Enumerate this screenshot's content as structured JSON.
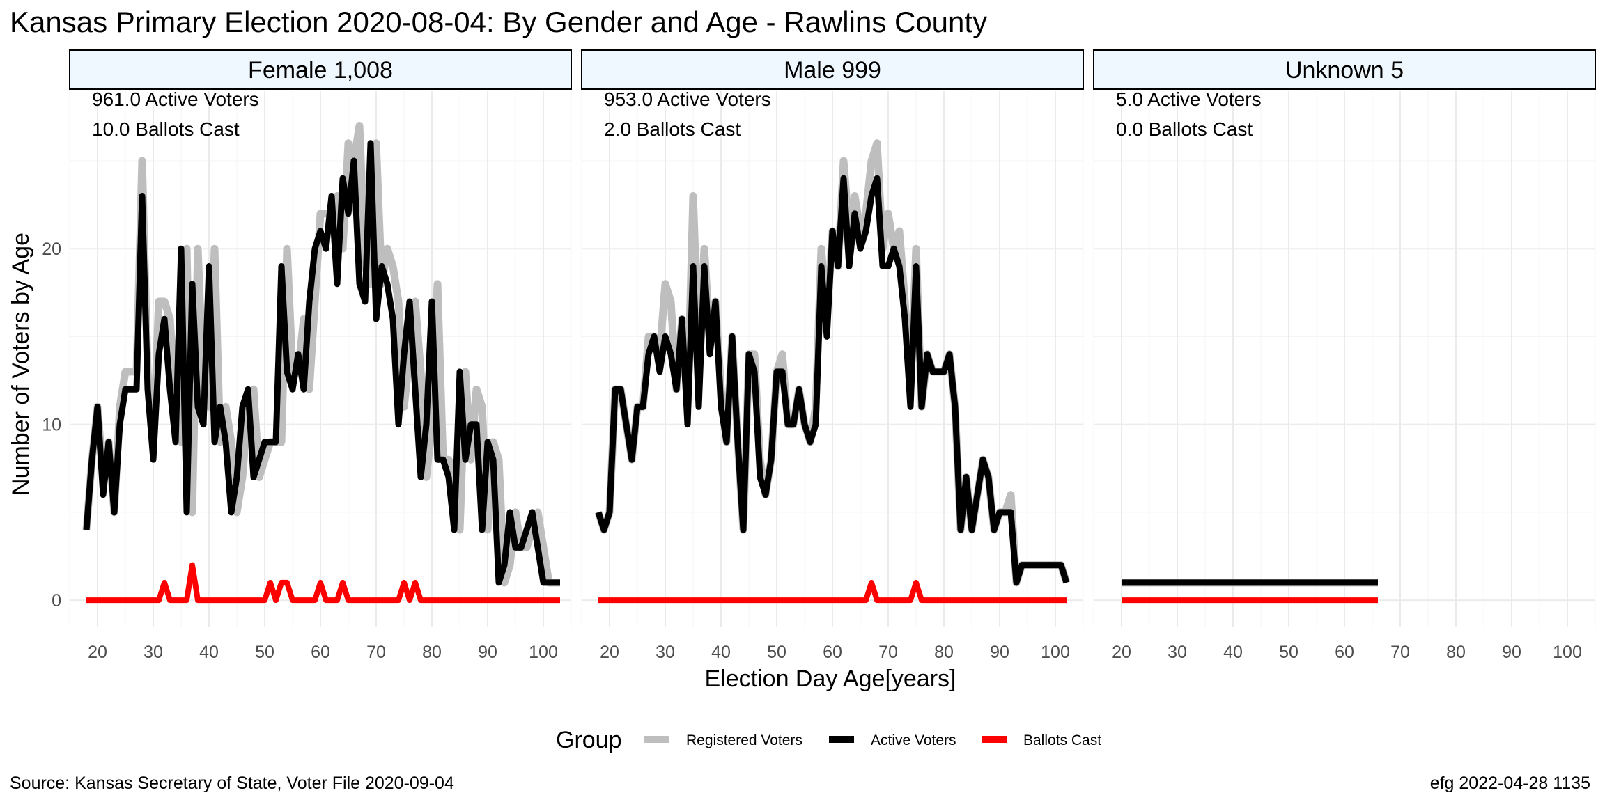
{
  "chart_data": {
    "type": "line",
    "title": "Kansas Primary Election 2020-08-04:  By Gender and Age - Rawlins County",
    "xlabel": "Election Day Age[years]",
    "ylabel": "Number of Voters by Age",
    "xlim": [
      15,
      105
    ],
    "ylim": [
      -1.5,
      29
    ],
    "x_ticks": [
      20,
      30,
      40,
      50,
      60,
      70,
      80,
      90,
      100
    ],
    "y_ticks": [
      0,
      10,
      20
    ],
    "grid": true,
    "legend": {
      "title": "Group",
      "position": "bottom",
      "entries": [
        {
          "name": "Registered Voters",
          "color": "#bebebe"
        },
        {
          "name": "Active Voters",
          "color": "#000000"
        },
        {
          "name": "Ballots Cast",
          "color": "#ff0000"
        }
      ]
    },
    "panels": [
      {
        "label": "Female 1,008",
        "annotations": [
          "961.0 Active Voters",
          "10.0 Ballots Cast"
        ],
        "series": [
          {
            "name": "Registered Voters",
            "x": [
              18,
              19,
              20,
              21,
              22,
              23,
              24,
              25,
              26,
              27,
              28,
              29,
              30,
              31,
              32,
              33,
              34,
              35,
              36,
              37,
              38,
              39,
              40,
              41,
              42,
              43,
              44,
              45,
              46,
              47,
              48,
              49,
              50,
              51,
              52,
              53,
              54,
              55,
              56,
              57,
              58,
              59,
              60,
              61,
              62,
              63,
              64,
              65,
              66,
              67,
              68,
              69,
              70,
              71,
              72,
              73,
              74,
              75,
              76,
              77,
              78,
              79,
              80,
              81,
              82,
              83,
              84,
              85,
              86,
              87,
              88,
              89,
              90,
              91,
              92,
              93,
              94,
              95,
              96,
              97,
              98,
              99,
              100,
              101,
              102,
              103
            ],
            "y": [
              4,
              8,
              11,
              7,
              9,
              5,
              11,
              13,
              13,
              13,
              25,
              13,
              9,
              17,
              17,
              16,
              11,
              9,
              20,
              5,
              20,
              12,
              11,
              20,
              9,
              11,
              9,
              5,
              7,
              11,
              12,
              7,
              8,
              9,
              9,
              9,
              20,
              13,
              13,
              16,
              12,
              17,
              22,
              22,
              22,
              23,
              20,
              26,
              25,
              27,
              19,
              18,
              26,
              18,
              20,
              19,
              17,
              11,
              14,
              17,
              13,
              7,
              10,
              18,
              8,
              8,
              7,
              4,
              13,
              8,
              12,
              11,
              4,
              9,
              8,
              1,
              2,
              5,
              3,
              3,
              4,
              5,
              3,
              1,
              1,
              1
            ]
          },
          {
            "name": "Active Voters",
            "x": [
              18,
              19,
              20,
              21,
              22,
              23,
              24,
              25,
              26,
              27,
              28,
              29,
              30,
              31,
              32,
              33,
              34,
              35,
              36,
              37,
              38,
              39,
              40,
              41,
              42,
              43,
              44,
              45,
              46,
              47,
              48,
              49,
              50,
              51,
              52,
              53,
              54,
              55,
              56,
              57,
              58,
              59,
              60,
              61,
              62,
              63,
              64,
              65,
              66,
              67,
              68,
              69,
              70,
              71,
              72,
              73,
              74,
              75,
              76,
              77,
              78,
              79,
              80,
              81,
              82,
              83,
              84,
              85,
              86,
              87,
              88,
              89,
              90,
              91,
              92,
              93,
              94,
              95,
              96,
              97,
              98,
              99,
              100,
              101,
              102,
              103
            ],
            "y": [
              4,
              8,
              11,
              6,
              9,
              5,
              10,
              12,
              12,
              12,
              23,
              12,
              8,
              14,
              16,
              12,
              9,
              20,
              5,
              18,
              11,
              10,
              19,
              9,
              11,
              9,
              5,
              7,
              11,
              12,
              7,
              8,
              9,
              9,
              9,
              19,
              13,
              12,
              14,
              12,
              17,
              20,
              21,
              20,
              23,
              18,
              24,
              22,
              25,
              18,
              17,
              26,
              16,
              19,
              18,
              16,
              10,
              14,
              17,
              12,
              7,
              10,
              17,
              8,
              8,
              7,
              4,
              13,
              8,
              10,
              10,
              4,
              9,
              8,
              1,
              2,
              5,
              3,
              3,
              4,
              5,
              3,
              1,
              1,
              1,
              1
            ]
          },
          {
            "name": "Ballots Cast",
            "x": [
              18,
              31,
              32,
              33,
              36,
              37,
              38,
              50,
              51,
              52,
              53,
              54,
              55,
              59,
              60,
              61,
              63,
              64,
              65,
              74,
              75,
              76,
              77,
              78,
              103
            ],
            "y": [
              0,
              0,
              1,
              0,
              0,
              2,
              0,
              0,
              1,
              0,
              1,
              1,
              0,
              0,
              1,
              0,
              0,
              1,
              0,
              0,
              1,
              0,
              1,
              0,
              0
            ]
          }
        ]
      },
      {
        "label": "Male 999",
        "annotations": [
          "953.0 Active Voters",
          "2.0 Ballots Cast"
        ],
        "series": [
          {
            "name": "Registered Voters",
            "x": [
              18,
              19,
              20,
              21,
              22,
              23,
              24,
              25,
              26,
              27,
              28,
              29,
              30,
              31,
              32,
              33,
              34,
              35,
              36,
              37,
              38,
              39,
              40,
              41,
              42,
              43,
              44,
              45,
              46,
              47,
              48,
              49,
              50,
              51,
              52,
              53,
              54,
              55,
              56,
              57,
              58,
              59,
              60,
              61,
              62,
              63,
              64,
              65,
              66,
              67,
              68,
              69,
              70,
              71,
              72,
              73,
              74,
              75,
              76,
              77,
              78,
              79,
              80,
              81,
              82,
              83,
              84,
              85,
              86,
              87,
              88,
              89,
              90,
              91,
              92,
              93,
              94,
              95,
              96,
              97,
              98,
              99,
              100,
              101,
              102
            ],
            "y": [
              5,
              4,
              5,
              12,
              12,
              10,
              8,
              11,
              11,
              15,
              15,
              14,
              18,
              17,
              12,
              16,
              11,
              23,
              14,
              20,
              15,
              17,
              12,
              9,
              15,
              9,
              4,
              14,
              14,
              8,
              6,
              8,
              13,
              14,
              10,
              10,
              12,
              10,
              9,
              11,
              20,
              16,
              21,
              19,
              25,
              21,
              23,
              21,
              22,
              25,
              26,
              20,
              22,
              20,
              21,
              17,
              12,
              20,
              11,
              14,
              13,
              13,
              13,
              14,
              11,
              4,
              7,
              4,
              6,
              8,
              7,
              4,
              5,
              5,
              6,
              1,
              2,
              2,
              2,
              2,
              2,
              2,
              2,
              2,
              1
            ]
          },
          {
            "name": "Active Voters",
            "x": [
              18,
              19,
              20,
              21,
              22,
              23,
              24,
              25,
              26,
              27,
              28,
              29,
              30,
              31,
              32,
              33,
              34,
              35,
              36,
              37,
              38,
              39,
              40,
              41,
              42,
              43,
              44,
              45,
              46,
              47,
              48,
              49,
              50,
              51,
              52,
              53,
              54,
              55,
              56,
              57,
              58,
              59,
              60,
              61,
              62,
              63,
              64,
              65,
              66,
              67,
              68,
              69,
              70,
              71,
              72,
              73,
              74,
              75,
              76,
              77,
              78,
              79,
              80,
              81,
              82,
              83,
              84,
              85,
              86,
              87,
              88,
              89,
              90,
              91,
              92,
              93,
              94,
              95,
              96,
              97,
              98,
              99,
              100,
              101,
              102
            ],
            "y": [
              5,
              4,
              5,
              12,
              12,
              10,
              8,
              11,
              11,
              14,
              15,
              13,
              15,
              14,
              12,
              16,
              10,
              19,
              11,
              19,
              14,
              17,
              11,
              9,
              15,
              9,
              4,
              14,
              13,
              7,
              6,
              8,
              13,
              13,
              10,
              10,
              12,
              10,
              9,
              10,
              19,
              15,
              21,
              19,
              24,
              19,
              22,
              20,
              21,
              23,
              24,
              19,
              19,
              20,
              19,
              16,
              11,
              19,
              11,
              14,
              13,
              13,
              13,
              14,
              11,
              4,
              7,
              4,
              6,
              8,
              7,
              4,
              5,
              5,
              5,
              1,
              2,
              2,
              2,
              2,
              2,
              2,
              2,
              2,
              1
            ]
          },
          {
            "name": "Ballots Cast",
            "x": [
              18,
              66,
              67,
              68,
              74,
              75,
              76,
              102
            ],
            "y": [
              0,
              0,
              1,
              0,
              0,
              1,
              0,
              0
            ]
          }
        ]
      },
      {
        "label": "Unknown 5",
        "annotations": [
          "5.0 Active Voters",
          "0.0 Ballots Cast"
        ],
        "series": [
          {
            "name": "Registered Voters",
            "x": [
              20,
              66
            ],
            "y": [
              1,
              1
            ]
          },
          {
            "name": "Active Voters",
            "x": [
              20,
              66
            ],
            "y": [
              1,
              1
            ]
          },
          {
            "name": "Ballots Cast",
            "x": [
              20,
              66
            ],
            "y": [
              0,
              0
            ]
          }
        ]
      }
    ],
    "caption_left": "Source:  Kansas Secretary of State, Voter File  2020-09-04",
    "caption_right": "efg 2022-04-28 1135"
  }
}
